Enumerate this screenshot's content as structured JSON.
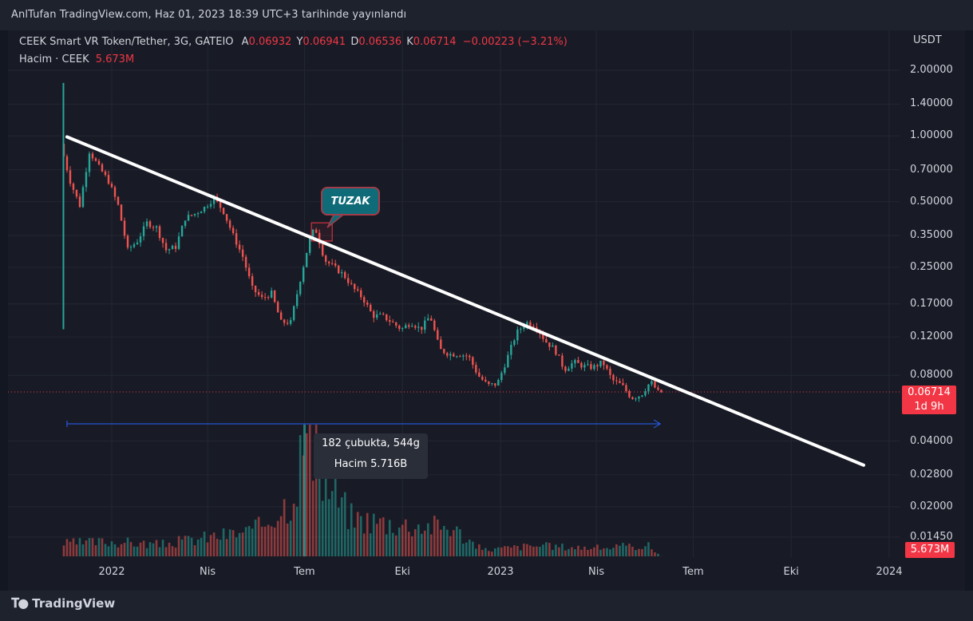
{
  "header": {
    "publish_text": "AnlTufan TradingView.com, Haz 01, 2023 18:39 UTC+3 tarihinde yayınlandı"
  },
  "legend": {
    "symbol": "CEEK Smart VR Token/Tether, 3G, GATEIO",
    "open_label": "A",
    "open": "0.06932",
    "high_label": "Y",
    "high": "0.06941",
    "low_label": "D",
    "low": "0.06536",
    "close_label": "K",
    "close": "0.06714",
    "change": "−0.00223 (−3.21%)",
    "volume_label": "Hacim · CEEK",
    "volume": "5.673M"
  },
  "price_axis": {
    "currency": "USDT",
    "ticks": [
      "2.00000",
      "1.40000",
      "1.00000",
      "0.70000",
      "0.50000",
      "0.35000",
      "0.25000",
      "0.17000",
      "0.12000",
      "0.08000",
      "0.04000",
      "0.02800",
      "0.02000",
      "0.01450"
    ]
  },
  "current_price": {
    "value": "0.06714",
    "countdown": "1d 9h",
    "color": "#f23645"
  },
  "volume_tag": {
    "value": "5.673M",
    "color": "#f23645"
  },
  "time_axis": [
    "2022",
    "Nis",
    "Tem",
    "Eki",
    "2023",
    "Nis",
    "Tem",
    "Eki",
    "2024"
  ],
  "annotation": {
    "label": "TUZAK"
  },
  "measure": {
    "bars_text": "182 çubukta, 544g",
    "volume_text": "Hacim 5.716B"
  },
  "colors": {
    "up": "#26a69a",
    "down": "#ef5350",
    "trendline": "#ffffff",
    "measure_line": "#2962ff",
    "background": "#131722"
  },
  "footer": {
    "brand": "TradingView"
  },
  "chart_data": {
    "type": "candlestick",
    "symbol": "CEEK Smart VR Token/Tether",
    "interval": "3G",
    "y_scale": "log",
    "ylim": [
      0.0125,
      2.4
    ],
    "x_labels": [
      "2022",
      "Nis",
      "Tem",
      "Eki",
      "2023",
      "Nis",
      "Tem",
      "Eki",
      "2024"
    ],
    "price_series": [
      {
        "date": "2021-11-17",
        "price": 0.92
      },
      {
        "date": "2021-11-26",
        "price": 0.62
      },
      {
        "date": "2021-12-05",
        "price": 0.48
      },
      {
        "date": "2021-12-14",
        "price": 0.85
      },
      {
        "date": "2021-12-23",
        "price": 0.72
      },
      {
        "date": "2022-01-01",
        "price": 0.62
      },
      {
        "date": "2022-01-10",
        "price": 0.48
      },
      {
        "date": "2022-01-19",
        "price": 0.3
      },
      {
        "date": "2022-01-28",
        "price": 0.33
      },
      {
        "date": "2022-02-06",
        "price": 0.4
      },
      {
        "date": "2022-02-15",
        "price": 0.38
      },
      {
        "date": "2022-02-24",
        "price": 0.3
      },
      {
        "date": "2022-03-05",
        "price": 0.31
      },
      {
        "date": "2022-03-14",
        "price": 0.42
      },
      {
        "date": "2022-03-23",
        "price": 0.44
      },
      {
        "date": "2022-04-01",
        "price": 0.47
      },
      {
        "date": "2022-04-10",
        "price": 0.52
      },
      {
        "date": "2022-04-19",
        "price": 0.45
      },
      {
        "date": "2022-04-28",
        "price": 0.35
      },
      {
        "date": "2022-05-07",
        "price": 0.28
      },
      {
        "date": "2022-05-16",
        "price": 0.2
      },
      {
        "date": "2022-05-25",
        "price": 0.18
      },
      {
        "date": "2022-06-03",
        "price": 0.19
      },
      {
        "date": "2022-06-12",
        "price": 0.14
      },
      {
        "date": "2022-06-21",
        "price": 0.14
      },
      {
        "date": "2022-06-30",
        "price": 0.22
      },
      {
        "date": "2022-07-09",
        "price": 0.34
      },
      {
        "date": "2022-07-14",
        "price": 0.38
      },
      {
        "date": "2022-07-23",
        "price": 0.27
      },
      {
        "date": "2022-08-01",
        "price": 0.25
      },
      {
        "date": "2022-08-10",
        "price": 0.23
      },
      {
        "date": "2022-08-19",
        "price": 0.2
      },
      {
        "date": "2022-08-28",
        "price": 0.18
      },
      {
        "date": "2022-09-06",
        "price": 0.15
      },
      {
        "date": "2022-09-15",
        "price": 0.15
      },
      {
        "date": "2022-09-24",
        "price": 0.14
      },
      {
        "date": "2022-10-03",
        "price": 0.13
      },
      {
        "date": "2022-10-12",
        "price": 0.14
      },
      {
        "date": "2022-10-21",
        "price": 0.13
      },
      {
        "date": "2022-10-30",
        "price": 0.15
      },
      {
        "date": "2022-11-08",
        "price": 0.105
      },
      {
        "date": "2022-11-17",
        "price": 0.1
      },
      {
        "date": "2022-11-26",
        "price": 0.1
      },
      {
        "date": "2022-12-05",
        "price": 0.098
      },
      {
        "date": "2022-12-14",
        "price": 0.08
      },
      {
        "date": "2022-12-23",
        "price": 0.072
      },
      {
        "date": "2023-01-01",
        "price": 0.073
      },
      {
        "date": "2023-01-10",
        "price": 0.095
      },
      {
        "date": "2023-01-19",
        "price": 0.125
      },
      {
        "date": "2023-01-28",
        "price": 0.14
      },
      {
        "date": "2023-02-06",
        "price": 0.135
      },
      {
        "date": "2023-02-15",
        "price": 0.115
      },
      {
        "date": "2023-02-24",
        "price": 0.105
      },
      {
        "date": "2023-03-05",
        "price": 0.085
      },
      {
        "date": "2023-03-14",
        "price": 0.092
      },
      {
        "date": "2023-03-23",
        "price": 0.088
      },
      {
        "date": "2023-04-01",
        "price": 0.087
      },
      {
        "date": "2023-04-10",
        "price": 0.092
      },
      {
        "date": "2023-04-19",
        "price": 0.076
      },
      {
        "date": "2023-04-28",
        "price": 0.072
      },
      {
        "date": "2023-05-07",
        "price": 0.063
      },
      {
        "date": "2023-05-16",
        "price": 0.065
      },
      {
        "date": "2023-05-25",
        "price": 0.075
      },
      {
        "date": "2023-06-01",
        "price": 0.067
      }
    ],
    "volume_series_millions": [
      {
        "date": "2021-11-20",
        "volume": 600
      },
      {
        "date": "2022-01-01",
        "volume": 700
      },
      {
        "date": "2022-02-15",
        "volume": 550
      },
      {
        "date": "2022-04-01",
        "volume": 900
      },
      {
        "date": "2022-05-15",
        "volume": 1200
      },
      {
        "date": "2022-06-20",
        "volume": 2800
      },
      {
        "date": "2022-07-01",
        "volume": 5716
      },
      {
        "date": "2022-07-20",
        "volume": 3500
      },
      {
        "date": "2022-08-15",
        "volume": 1800
      },
      {
        "date": "2022-10-01",
        "volume": 1500
      },
      {
        "date": "2022-11-15",
        "volume": 1400
      },
      {
        "date": "2022-12-15",
        "volume": 300
      },
      {
        "date": "2023-02-01",
        "volume": 500
      },
      {
        "date": "2023-04-01",
        "volume": 400
      },
      {
        "date": "2023-05-20",
        "volume": 500
      },
      {
        "date": "2023-06-01",
        "volume": 5.673
      }
    ],
    "trendline": {
      "from": {
        "date": "2021-11-20",
        "price": 0.99
      },
      "to": {
        "date": "2023-12-08",
        "price": 0.031
      }
    },
    "measure_range": {
      "from": "2021-11-20",
      "to": "2023-05-31"
    },
    "last_close": 0.06714
  }
}
